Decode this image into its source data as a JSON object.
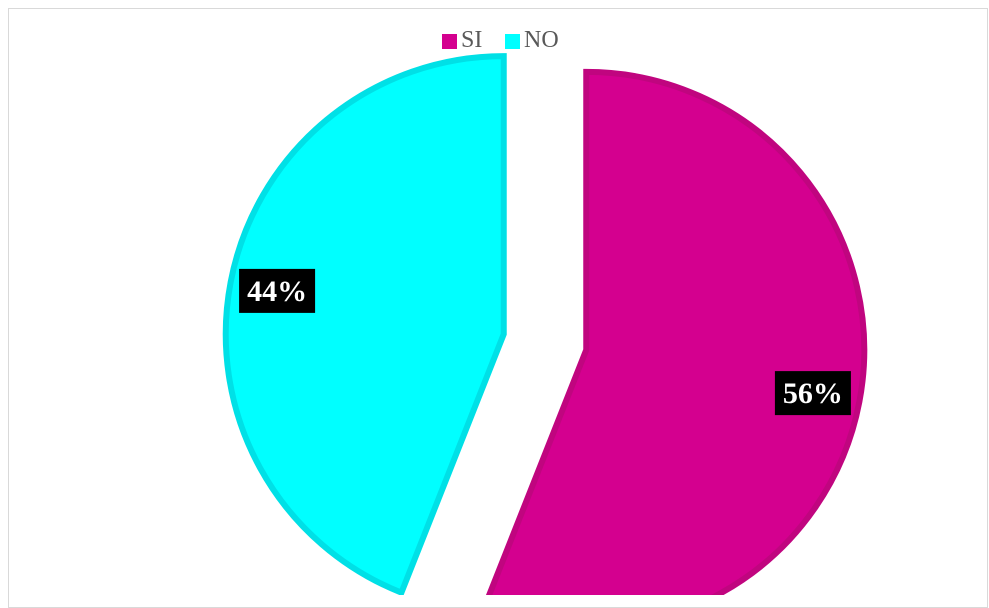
{
  "chart_data": {
    "type": "pie",
    "categories": [
      "SI",
      "NO"
    ],
    "values": [
      56,
      44
    ],
    "data_labels": [
      "56%",
      "44%"
    ],
    "legend_position": "top",
    "exploded": true,
    "colors": {
      "SI": "#d4008f",
      "NO": "#00ffff",
      "SI_border": "#c0057f",
      "NO_border": "#00e0e6",
      "label_bg": "#000000",
      "label_text": "#ffffff"
    }
  }
}
